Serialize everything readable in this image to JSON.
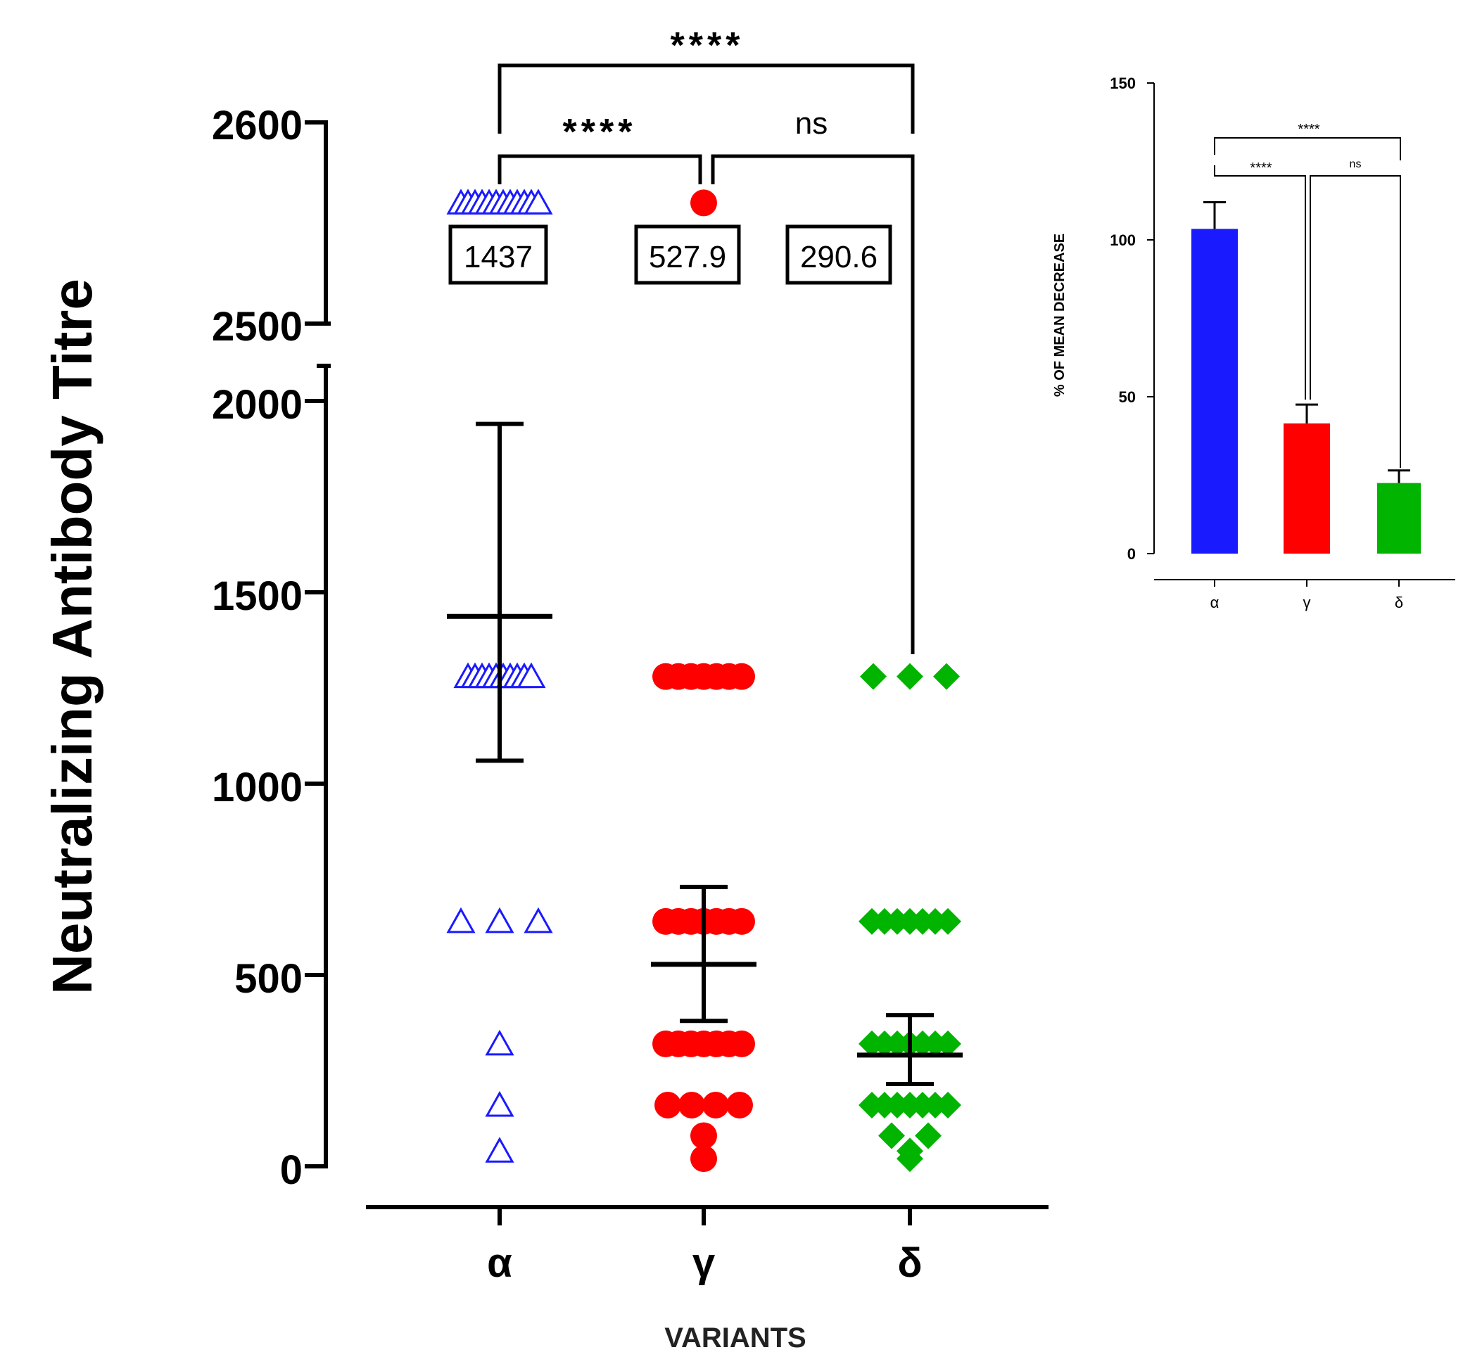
{
  "colors": {
    "alpha": "#1a1aff",
    "gamma": "#ff0000",
    "delta": "#00b400",
    "axis": "#000000"
  },
  "chart_data": [
    {
      "type": "scatter",
      "title": "",
      "ylabel": "Neutralizing Antibody Titre",
      "xlabel": "VARIANTS",
      "categories": [
        "α",
        "γ",
        "δ"
      ],
      "y_segments": [
        [
          0,
          2100
        ],
        [
          2500,
          2600
        ]
      ],
      "yticks_lower": [
        "0",
        "500",
        "1000",
        "1500",
        "2000"
      ],
      "yticks_upper": [
        "2500",
        "2600"
      ],
      "series": [
        {
          "name": "α",
          "marker": "triangle-open",
          "points": [
            40,
            160,
            320,
            640,
            640,
            640,
            1280,
            1280,
            1280,
            1280,
            1280,
            1280,
            1280,
            1280,
            1280,
            1280,
            2560,
            2560,
            2560,
            2560,
            2560,
            2560,
            2560,
            2560,
            2560,
            2560,
            2560,
            2560
          ],
          "mean": 1437,
          "ci_low": 1060,
          "ci_high": 1940,
          "mean_label": "1437"
        },
        {
          "name": "γ",
          "marker": "circle",
          "points": [
            20,
            80,
            160,
            160,
            160,
            160,
            320,
            320,
            320,
            320,
            320,
            320,
            320,
            640,
            640,
            640,
            640,
            640,
            640,
            640,
            1280,
            1280,
            1280,
            1280,
            1280,
            1280,
            1280,
            2560
          ],
          "mean": 527.9,
          "ci_low": 380,
          "ci_high": 730,
          "mean_label": "527.9"
        },
        {
          "name": "δ",
          "marker": "diamond",
          "points": [
            20,
            40,
            80,
            80,
            160,
            160,
            160,
            160,
            160,
            160,
            160,
            320,
            320,
            320,
            320,
            320,
            320,
            320,
            640,
            640,
            640,
            640,
            640,
            640,
            640,
            1280,
            1280,
            1280
          ],
          "mean": 290.6,
          "ci_low": 215,
          "ci_high": 395,
          "mean_label": "290.6"
        }
      ],
      "comparisons": [
        {
          "pair": [
            "α",
            "γ"
          ],
          "label": "****"
        },
        {
          "pair": [
            "γ",
            "δ"
          ],
          "label": "ns"
        },
        {
          "pair": [
            "α",
            "δ"
          ],
          "label": "****"
        }
      ]
    },
    {
      "type": "bar",
      "title": "",
      "ylabel": "% OF MEAN DECREASE",
      "xlabel": "",
      "categories": [
        "α",
        "γ",
        "δ"
      ],
      "values": [
        103.5,
        41.5,
        22.5
      ],
      "errors": [
        8.5,
        6,
        4
      ],
      "ylim": [
        0,
        150
      ],
      "yticks": [
        "0",
        "50",
        "100",
        "150"
      ],
      "comparisons": [
        {
          "pair": [
            "α",
            "γ"
          ],
          "label": "****"
        },
        {
          "pair": [
            "γ",
            "δ"
          ],
          "label": "ns"
        },
        {
          "pair": [
            "α",
            "δ"
          ],
          "label": "****"
        }
      ]
    }
  ]
}
